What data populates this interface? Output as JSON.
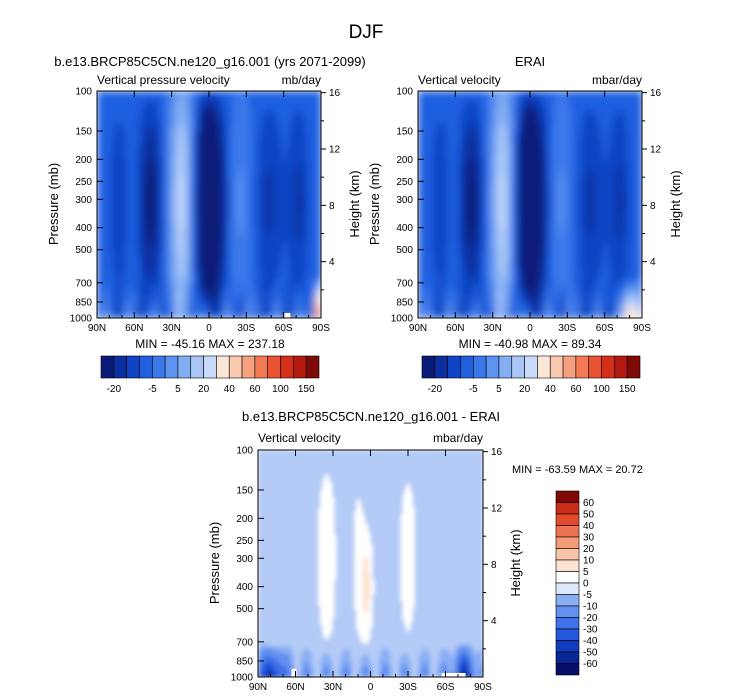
{
  "page_title": "DJF",
  "colors": {
    "neg": [
      "#0a1a78",
      "#0b2f9e",
      "#0f45c4",
      "#1f5fe0",
      "#3a78ea",
      "#5c93f0",
      "#84aef4",
      "#a9c6f7",
      "#c9dbfa"
    ],
    "pos": [
      "#fbe7d8",
      "#f8c9ae",
      "#f5a17f",
      "#f27a55",
      "#eb522f",
      "#d5301a",
      "#b51a10",
      "#7d0a06"
    ],
    "diff": [
      "#050f6a",
      "#0a2796",
      "#123ebd",
      "#2457dc",
      "#3f72e9",
      "#6290f0",
      "#8aaef4",
      "#b4cbf7",
      "#dde8fb",
      "#ffffff",
      "#fde3d1",
      "#f9c4a8",
      "#f49c78",
      "#ee7351",
      "#e24a2b",
      "#c92d18",
      "#a8160d",
      "#7d0805"
    ]
  },
  "chart_data": [
    {
      "type": "heatmap",
      "title": "b.e13.BRCP85C5CN.ne120_g16.001 (yrs 2071-2099)",
      "left_string": "Vertical pressure velocity",
      "right_string": "mb/day",
      "xlabel": "",
      "ylabel": "Pressure (mb)",
      "right_ylabel": "Height (km)",
      "x_ticks": [
        "90N",
        "60N",
        "30N",
        "0",
        "30S",
        "60S",
        "90S"
      ],
      "x_tick_values": [
        90,
        60,
        30,
        0,
        -30,
        -60,
        -90
      ],
      "y_ticks": [
        "100",
        "150",
        "200",
        "250",
        "300",
        "400",
        "500",
        "700",
        "850",
        "1000"
      ],
      "y_tick_values": [
        100,
        150,
        200,
        250,
        300,
        400,
        500,
        700,
        850,
        1000
      ],
      "height_ticks": [
        "16",
        "12",
        "8",
        "4"
      ],
      "height_tick_values": [
        16,
        12,
        8,
        4
      ],
      "xlim": [
        90,
        -90
      ],
      "ylim": [
        1000,
        100
      ],
      "min_max": "MIN = -45.16  MAX = 237.18",
      "colorbar_labels": [
        "-20",
        "-5",
        "5",
        "20",
        "40",
        "60",
        "100",
        "150"
      ],
      "field": "full",
      "min": -45.16,
      "max": 237.18
    },
    {
      "type": "heatmap",
      "title": "ERAI",
      "left_string": "Vertical velocity",
      "right_string": "mbar/day",
      "xlabel": "",
      "ylabel": "Pressure (mb)",
      "right_ylabel": "Height (km)",
      "x_ticks": [
        "90N",
        "60N",
        "30N",
        "0",
        "30S",
        "60S",
        "90S"
      ],
      "x_tick_values": [
        90,
        60,
        30,
        0,
        -30,
        -60,
        -90
      ],
      "y_ticks": [
        "100",
        "150",
        "200",
        "250",
        "300",
        "400",
        "500",
        "700",
        "850",
        "1000"
      ],
      "y_tick_values": [
        100,
        150,
        200,
        250,
        300,
        400,
        500,
        700,
        850,
        1000
      ],
      "height_ticks": [
        "16",
        "12",
        "8",
        "4"
      ],
      "height_tick_values": [
        16,
        12,
        8,
        4
      ],
      "xlim": [
        90,
        -90
      ],
      "ylim": [
        1000,
        100
      ],
      "min_max": "MIN = -40.98  MAX =  89.34",
      "colorbar_labels": [
        "-20",
        "-5",
        "5",
        "20",
        "40",
        "60",
        "100",
        "150"
      ],
      "field": "full",
      "min": -40.98,
      "max": 89.34
    },
    {
      "type": "heatmap",
      "title": "b.e13.BRCP85C5CN.ne120_g16.001 - ERAI",
      "left_string": "Vertical velocity",
      "right_string": "mbar/day",
      "xlabel": "",
      "ylabel": "Pressure (mb)",
      "right_ylabel": "Height (km)",
      "x_ticks": [
        "90N",
        "60N",
        "30N",
        "0",
        "30S",
        "60S",
        "90S"
      ],
      "x_tick_values": [
        90,
        60,
        30,
        0,
        -30,
        -60,
        -90
      ],
      "y_ticks": [
        "100",
        "150",
        "200",
        "250",
        "300",
        "400",
        "500",
        "700",
        "850",
        "1000"
      ],
      "y_tick_values": [
        100,
        150,
        200,
        250,
        300,
        400,
        500,
        700,
        850,
        1000
      ],
      "height_ticks": [
        "16",
        "12",
        "8",
        "4"
      ],
      "height_tick_values": [
        16,
        12,
        8,
        4
      ],
      "xlim": [
        90,
        -90
      ],
      "ylim": [
        1000,
        100
      ],
      "min_max": "MIN = -63.59  MAX =  20.72",
      "colorbar_labels": [
        "60",
        "50",
        "40",
        "30",
        "20",
        "10",
        "5",
        "0",
        "-5",
        "-10",
        "-20",
        "-30",
        "-40",
        "-50",
        "-60"
      ],
      "field": "diff",
      "min": -63.59,
      "max": 20.72
    }
  ]
}
